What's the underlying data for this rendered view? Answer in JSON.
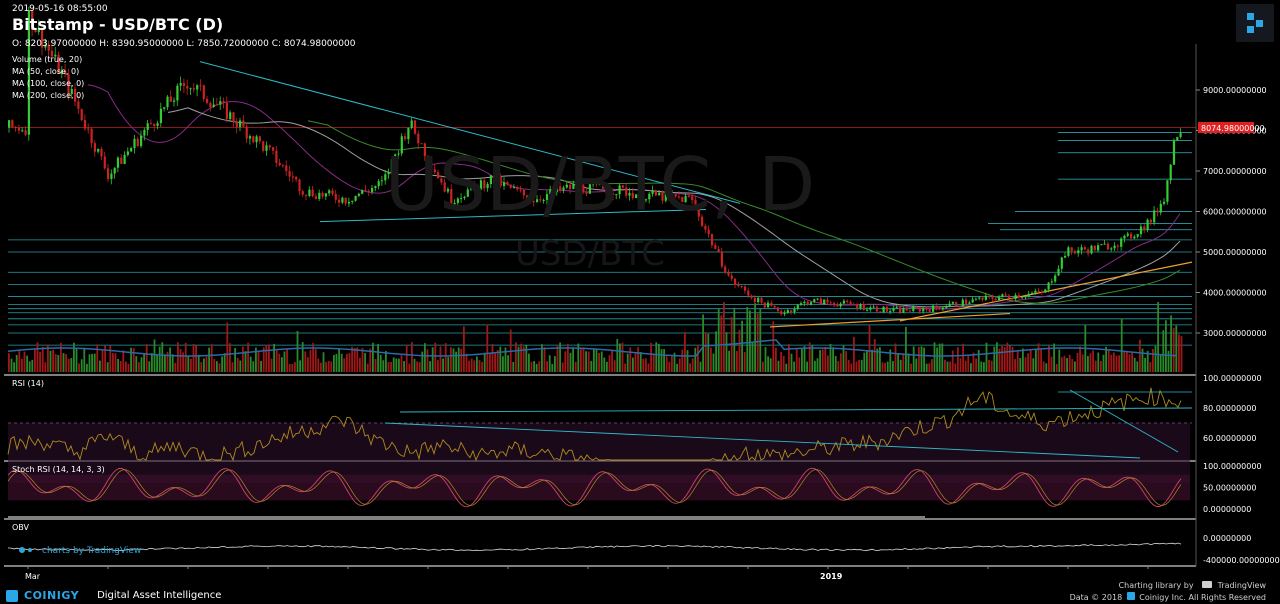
{
  "header": {
    "timestamp": "2019-05-16 08:55:00",
    "title": "Bitstamp - USD/BTC (D)",
    "ohlc": "O: 8203.97000000 H: 8390.95000000 L: 7850.72000000 C: 8074.98000000",
    "indicators": [
      "Volume (true, 20)",
      "MA (50, close, 0)",
      "MA (100, close, 0)",
      "MA (200, close, 0)"
    ]
  },
  "watermark": {
    "main": "USD/BTC, D",
    "sub": "USD/BTC"
  },
  "tradingview_label": "charts by TradingView",
  "panels": {
    "rsi": "RSI (14)",
    "stoch": "Stoch RSI (14, 14, 3, 3)",
    "obv": "OBV"
  },
  "last_price_label": "8074.98000000",
  "colors": {
    "up": "#33cc33",
    "down": "#cc2222",
    "trendline": "#2fb8c8",
    "orange": "#f0a030",
    "ma50": "#8a2a8a",
    "ma100": "#a0a0a0",
    "ma200": "#3a8a2a",
    "rsi": "#b08a20",
    "stoch": "#d04070",
    "price_tag": "#e02020"
  },
  "footer": {
    "brand": "COINIGY",
    "tagline": "Digital Asset Intelligence",
    "charting": "Charting library by",
    "tv": "TradingView",
    "data": "Data © 2018",
    "copyright": "Coinigy Inc. All Rights Reserved"
  },
  "chart_data": [
    {
      "type": "line",
      "title": "Bitstamp - USD/BTC (D)",
      "x_ticks": [
        "Mar",
        "2019"
      ],
      "y_ticks": [
        "3000.00000000",
        "4000.00000000",
        "5000.00000000",
        "6000.00000000",
        "7000.00000000",
        "8000.00000000",
        "9000.00000000"
      ],
      "ylim": [
        2900,
        9900
      ],
      "series": [
        {
          "x": [
            "2018-03-01",
            "2018-03-15",
            "2018-04-01",
            "2018-04-15",
            "2018-05-01",
            "2018-05-15",
            "2018-06-01",
            "2018-06-15",
            "2018-07-01",
            "2018-07-15",
            "2018-07-25",
            "2018-08-10",
            "2018-08-25",
            "2018-09-10",
            "2018-09-25",
            "2018-10-10",
            "2018-10-25",
            "2018-11-10",
            "2018-11-15",
            "2018-11-25",
            "2018-12-05",
            "2018-12-15",
            "2018-12-25",
            "2019-01-10",
            "2019-01-25",
            "2019-02-10",
            "2019-02-25",
            "2019-03-10",
            "2019-03-25",
            "2019-04-02",
            "2019-04-15",
            "2019-04-25",
            "2019-05-05",
            "2019-05-10",
            "2019-05-14",
            "2019-05-16"
          ],
          "values": [
            10900,
            9300,
            6900,
            8000,
            9200,
            8500,
            7500,
            6500,
            6300,
            6700,
            8200,
            6300,
            6800,
            6300,
            6600,
            6550,
            6400,
            6300,
            5600,
            4300,
            3800,
            3500,
            3800,
            3700,
            3550,
            3600,
            3800,
            3900,
            4000,
            5000,
            5100,
            5300,
            5800,
            6400,
            7900,
            8074.98
          ]
        }
      ]
    },
    {
      "type": "bar",
      "title": "Volume (true, 20)",
      "values": []
    },
    {
      "type": "line",
      "title": "RSI (14)",
      "y_ticks": [
        "60.00000000",
        "80.00000000",
        "100.00000000"
      ],
      "ylim": [
        45,
        100
      ],
      "values": [
        55,
        58,
        50,
        62,
        48,
        55,
        47,
        52,
        60,
        66,
        72,
        58,
        50,
        55,
        48,
        52,
        50,
        46,
        40,
        35,
        38,
        42,
        50,
        48,
        52,
        55,
        58,
        66,
        72,
        88,
        75,
        70,
        76,
        82,
        88,
        84
      ]
    },
    {
      "type": "line",
      "title": "Stoch RSI (14, 14, 3, 3)",
      "y_ticks": [
        "0.00000000",
        "50.00000000",
        "100.00000000"
      ],
      "ylim": [
        -10,
        110
      ],
      "values": []
    },
    {
      "type": "line",
      "title": "OBV",
      "y_ticks": [
        "0.00000000",
        "-400000.00000000"
      ],
      "values": []
    }
  ]
}
